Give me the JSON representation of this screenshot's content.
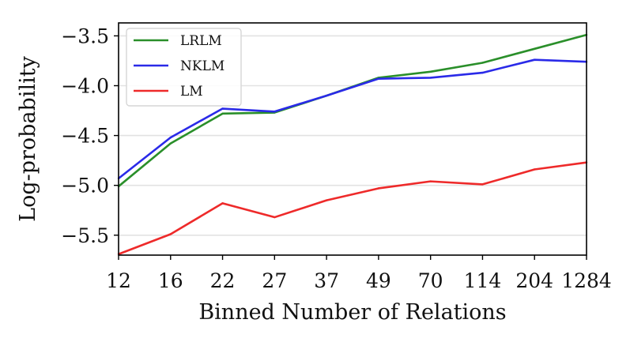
{
  "chart_data": {
    "type": "line",
    "title": "",
    "xlabel": "Binned Number of Relations",
    "ylabel": "Log-probability",
    "categories": [
      "12",
      "16",
      "22",
      "27",
      "37",
      "49",
      "70",
      "114",
      "204",
      "1284"
    ],
    "ylim": [
      -5.7,
      -3.37
    ],
    "yticks": [
      -3.5,
      -4.0,
      -4.5,
      -5.0,
      -5.5
    ],
    "ytick_labels": [
      "−3.5",
      "−4.0",
      "−4.5",
      "−5.0",
      "−5.5"
    ],
    "grid": "horizontal",
    "legend_position": "top-left",
    "series": [
      {
        "name": "LRLM",
        "color": "#2a8f2a",
        "values": [
          -5.01,
          -4.58,
          -4.28,
          -4.27,
          -4.1,
          -3.92,
          -3.86,
          -3.77,
          -3.63,
          -3.49
        ]
      },
      {
        "name": "NKLM",
        "color": "#2a2ae8",
        "values": [
          -4.93,
          -4.52,
          -4.23,
          -4.26,
          -4.1,
          -3.93,
          -3.92,
          -3.87,
          -3.74,
          -3.76
        ]
      },
      {
        "name": "LM",
        "color": "#ee2a2a",
        "values": [
          -5.69,
          -5.49,
          -5.18,
          -5.32,
          -5.15,
          -5.03,
          -4.96,
          -4.99,
          -4.84,
          -4.77
        ]
      }
    ]
  }
}
